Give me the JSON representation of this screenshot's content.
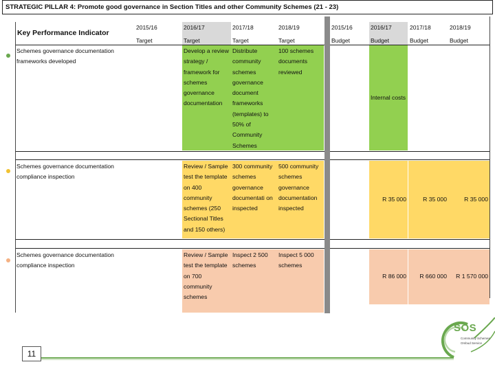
{
  "title": "STRATEGIC PILLAR 4: Promote good governance in Section Titles and other Community Schemes (21 - 23)",
  "header": {
    "kpi_label": "Key Performance Indicator",
    "years": [
      "2015/16",
      "2016/17",
      "2017/18",
      "2018/19",
      "2015/16",
      "2016/17",
      "2017/18",
      "2018/19"
    ],
    "subheads": [
      "Target",
      "Target",
      "Target",
      "Target",
      "Budget",
      "Budget",
      "Budget",
      "Budget"
    ]
  },
  "rows": [
    {
      "kpi": "Schemes governance documentation frameworks developed",
      "target_2016_17": "Develop a review strategy / framework for schemes governance documentation",
      "target_2017_18": "Distribute community schemes governance document frameworks (templates) to 50% of Community Schemes",
      "target_2018_19": "100 schemes documents reviewed",
      "budget_2016_17": "Internal costs",
      "color": "#92d050"
    },
    {
      "kpi": "Schemes governance documentation compliance inspection",
      "target_2016_17": "Review / Sample test the template on 400 community schemes (250 Sectional Titles and 150 others)",
      "target_2017_18": "300 community schemes governance documentati on inspected",
      "target_2018_19": "500 community schemes governance documentation inspected",
      "budget_2016_17": "R 35 000",
      "budget_2017_18": "R 35 000",
      "budget_2018_19": "R 35 000",
      "color": "#ffd966"
    },
    {
      "kpi": "Schemes governance documentation compliance inspection",
      "target_2016_17": "Review / Sample test the template on 700 community schemes",
      "target_2017_18": "Inspect 2 500 schemes",
      "target_2018_19": "Inspect 5 000 schemes",
      "budget_2016_17": "R 86 000",
      "budget_2017_18": "R 660 000",
      "budget_2018_19": "R 1 570 000",
      "color": "#f8cbad"
    }
  ],
  "footer": {
    "page_number": "11",
    "logo_text": "SOS",
    "logo_sub1": "Community Schemes",
    "logo_sub2": "Ombud Service"
  },
  "colors": {
    "header_gray": "#d9d9d9",
    "green": "#92d050",
    "yellow": "#ffd966",
    "peach": "#f8cbad",
    "logo_green": "#6aa84f"
  }
}
